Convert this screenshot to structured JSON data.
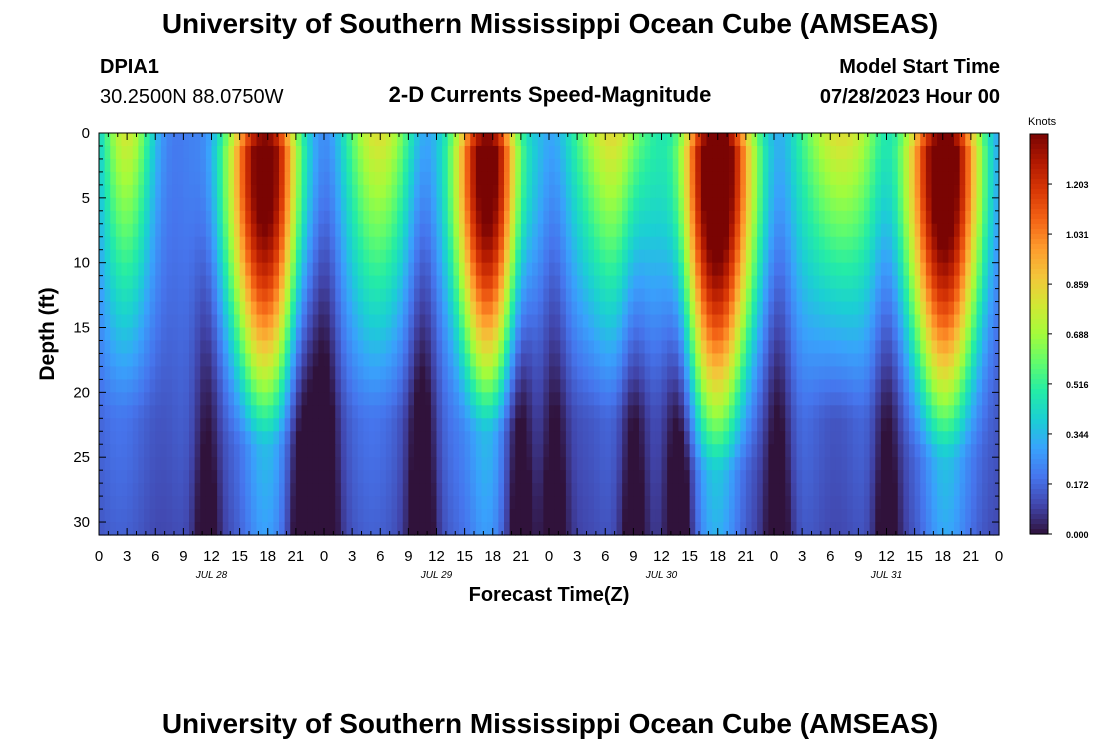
{
  "header": {
    "title": "University of Southern Mississippi Ocean Cube (AMSEAS)",
    "station_id": "DPIA1",
    "station_coords": "30.2500N  88.0750W",
    "subtitle": "2-D Currents Speed-Magnitude",
    "model_start_label": "Model Start Time",
    "model_start_value": "07/28/2023 Hour 00"
  },
  "footer": {
    "title": "University of Southern Mississippi Ocean Cube (AMSEAS)"
  },
  "chart_data": {
    "type": "heatmap",
    "title": "2-D Currents Speed-Magnitude",
    "xlabel": "Forecast Time(Z)",
    "ylabel": "Depth (ft)",
    "x_tick_labels": [
      "0",
      "3",
      "6",
      "9",
      "12",
      "15",
      "18",
      "21",
      "0",
      "3",
      "6",
      "9",
      "12",
      "15",
      "18",
      "21",
      "0",
      "3",
      "6",
      "9",
      "12",
      "15",
      "18",
      "21",
      "0",
      "3",
      "6",
      "9",
      "12",
      "15",
      "18",
      "21",
      "0"
    ],
    "x_date_labels": [
      "JUL 28",
      "JUL 29",
      "JUL 30",
      "JUL 31"
    ],
    "x_range_hours": [
      0,
      96
    ],
    "y_ticks": [
      0,
      5,
      10,
      15,
      20,
      25,
      30
    ],
    "ylim": [
      0,
      31
    ],
    "y_inverted": true,
    "colorbar": {
      "unit": "Knots",
      "ticks": [
        "1.203",
        "1.031",
        "0.859",
        "0.688",
        "0.516",
        "0.344",
        "0.172",
        "0.000"
      ],
      "range": [
        0,
        1.375
      ],
      "colors": [
        "#30123b",
        "#4145ab",
        "#4675ed",
        "#39a2fc",
        "#1bcfd4",
        "#24eca6",
        "#61fc6c",
        "#a4fc3b",
        "#d1e834",
        "#f3c63a",
        "#fe9b2d",
        "#f36315",
        "#d93806",
        "#b11901",
        "#7a0403"
      ]
    },
    "speed_profile": {
      "description_note": "",
      "peaks": [
        {
          "hour": 17.5,
          "amp": 1.27,
          "sigma": 3.4,
          "depth_max": 24
        },
        {
          "hour": 41.5,
          "amp": 1.29,
          "sigma": 3.0,
          "depth_max": 23
        },
        {
          "hour": 66.0,
          "amp": 1.33,
          "sigma": 3.6,
          "depth_max": 26
        },
        {
          "hour": 90.0,
          "amp": 1.31,
          "sigma": 3.5,
          "depth_max": 25
        }
      ],
      "secondary_peaks": [
        {
          "hour": 3.0,
          "amp": 0.55,
          "sigma": 3.0
        },
        {
          "hour": 30.0,
          "amp": 0.58,
          "sigma": 4.5
        },
        {
          "hour": 54.5,
          "amp": 0.62,
          "sigma": 5.0
        },
        {
          "hour": 79.0,
          "amp": 0.66,
          "sigma": 4.5
        }
      ],
      "minima_hours": [
        11.5,
        21.5,
        24.0,
        34.5,
        45.0,
        48.5,
        57.0,
        62.0,
        72.5,
        84.0
      ],
      "surface_floor": 0.2
    }
  }
}
